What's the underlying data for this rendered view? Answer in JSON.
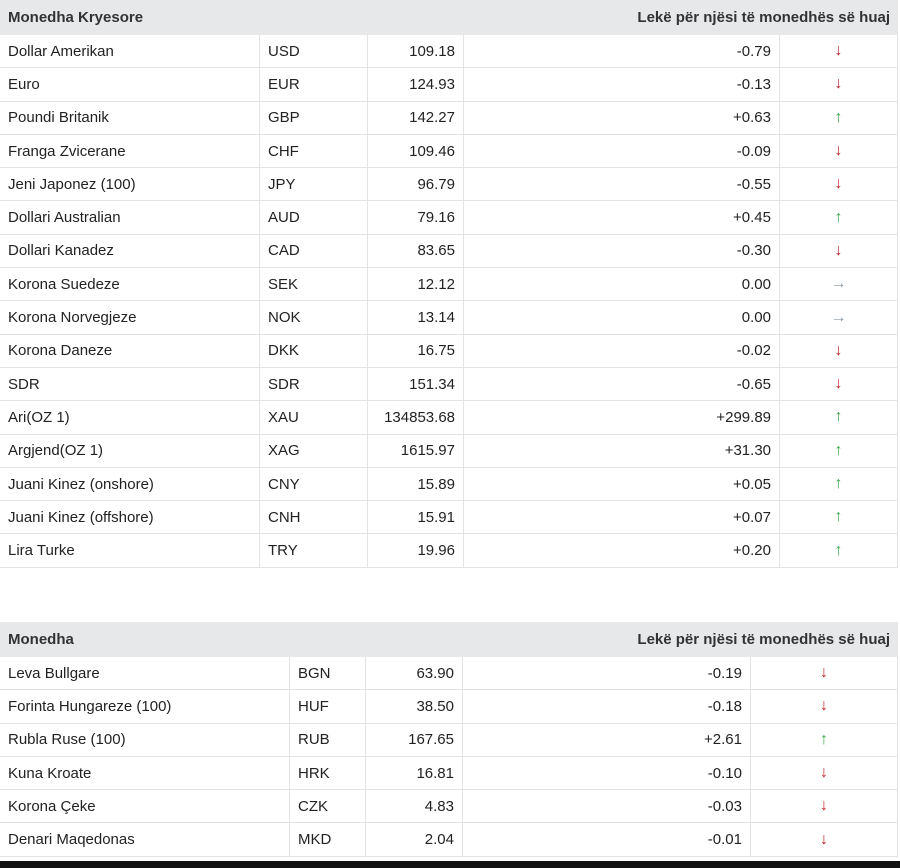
{
  "table1": {
    "header_left": "Monedha Kryesore",
    "header_right": "Lekë për njësi të monedhës së huaj",
    "rows": [
      {
        "name": "Dollar Amerikan",
        "code": "USD",
        "rate": "109.18",
        "change": "-0.79",
        "dir": "down"
      },
      {
        "name": "Euro",
        "code": "EUR",
        "rate": "124.93",
        "change": "-0.13",
        "dir": "down"
      },
      {
        "name": "Poundi Britanik",
        "code": "GBP",
        "rate": "142.27",
        "change": "+0.63",
        "dir": "up"
      },
      {
        "name": "Franga Zvicerane",
        "code": "CHF",
        "rate": "109.46",
        "change": "-0.09",
        "dir": "down"
      },
      {
        "name": "Jeni Japonez (100)",
        "code": "JPY",
        "rate": "96.79",
        "change": "-0.55",
        "dir": "down"
      },
      {
        "name": "Dollari Australian",
        "code": "AUD",
        "rate": "79.16",
        "change": "+0.45",
        "dir": "up"
      },
      {
        "name": "Dollari Kanadez",
        "code": "CAD",
        "rate": "83.65",
        "change": "-0.30",
        "dir": "down"
      },
      {
        "name": "Korona Suedeze",
        "code": "SEK",
        "rate": "12.12",
        "change": "0.00",
        "dir": "flat"
      },
      {
        "name": "Korona Norvegjeze",
        "code": "NOK",
        "rate": "13.14",
        "change": "0.00",
        "dir": "flat"
      },
      {
        "name": "Korona Daneze",
        "code": "DKK",
        "rate": "16.75",
        "change": "-0.02",
        "dir": "down"
      },
      {
        "name": "SDR",
        "code": "SDR",
        "rate": "151.34",
        "change": "-0.65",
        "dir": "down"
      },
      {
        "name": "Ari(OZ 1)",
        "code": "XAU",
        "rate": "134853.68",
        "change": "+299.89",
        "dir": "up"
      },
      {
        "name": "Argjend(OZ 1)",
        "code": "XAG",
        "rate": "1615.97",
        "change": "+31.30",
        "dir": "up"
      },
      {
        "name": "Juani Kinez (onshore)",
        "code": "CNY",
        "rate": "15.89",
        "change": "+0.05",
        "dir": "up"
      },
      {
        "name": "Juani Kinez (offshore)",
        "code": "CNH",
        "rate": "15.91",
        "change": "+0.07",
        "dir": "up"
      },
      {
        "name": "Lira Turke",
        "code": "TRY",
        "rate": "19.96",
        "change": "+0.20",
        "dir": "up"
      }
    ]
  },
  "table2": {
    "header_left": "Monedha",
    "header_right": "Lekë për njësi të monedhës së huaj",
    "rows": [
      {
        "name": "Leva Bullgare",
        "code": "BGN",
        "rate": "63.90",
        "change": "-0.19",
        "dir": "down"
      },
      {
        "name": "Forinta Hungareze (100)",
        "code": "HUF",
        "rate": "38.50",
        "change": "-0.18",
        "dir": "down"
      },
      {
        "name": "Rubla Ruse (100)",
        "code": "RUB",
        "rate": "167.65",
        "change": "+2.61",
        "dir": "up"
      },
      {
        "name": "Kuna Kroate",
        "code": "HRK",
        "rate": "16.81",
        "change": "-0.10",
        "dir": "down"
      },
      {
        "name": "Korona Çeke",
        "code": "CZK",
        "rate": "4.83",
        "change": "-0.03",
        "dir": "down"
      },
      {
        "name": "Denari Maqedonas",
        "code": "MKD",
        "rate": "2.04",
        "change": "-0.01",
        "dir": "down"
      }
    ]
  },
  "colors": {
    "down": "#c0262d",
    "up": "#3aa84a",
    "flat": "#8a96a3",
    "header_bg": "#e6e8ea"
  },
  "icons": {
    "down": "arrow-down-icon",
    "up": "arrow-up-icon",
    "flat": "arrow-right-icon"
  }
}
